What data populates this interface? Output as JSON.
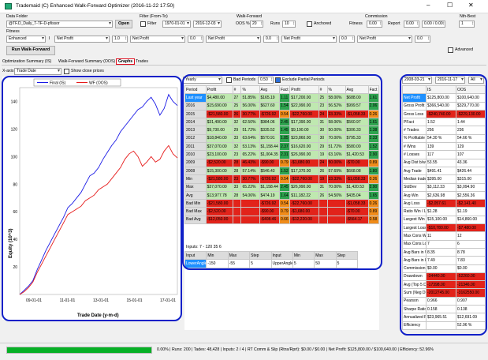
{
  "window": {
    "title": "Trademaid (C) Enhanced Walk-Forward Optimizer (2016-11-22 17:50)",
    "min": "–",
    "max": "☐",
    "close": "✕"
  },
  "data_folder": {
    "label": "Data Folder",
    "value": "@TF.D_Daily_T-TF-D-pfissor",
    "open": "Open"
  },
  "filter": {
    "label": "Filter (From-To)",
    "check": "Filter",
    "from": "1970-01-01",
    "to": "2016-12-03"
  },
  "wf": {
    "label": "Walk-Forward",
    "oos_label": "OOS %",
    "oos": "20",
    "runs_label": "Runs",
    "runs": "10",
    "anchored": "Anchored"
  },
  "commission": {
    "label": "Commission",
    "fitness_label": "Fitness",
    "fitness": "0.00",
    "report_label": "Report",
    "report": "0.00",
    "report2": "0.00 / 0.00"
  },
  "nth": {
    "label": "Nth-Best",
    "value": "1"
  },
  "fitness_row": {
    "label": "Fitness",
    "mode": "Enhanced",
    "sep": "I",
    "metric": "Net Profit",
    "v1": "1.0",
    "m2": "Net Profit",
    "v2": "0.0",
    "m3": "Net Profit",
    "v3": "0.0",
    "m4": "Net Profit",
    "v4": "0.0",
    "m5": "Net Profit",
    "v5": "0.0"
  },
  "run_button": "Run Walk-Forward",
  "advanced": "Advanced",
  "tabs": [
    "Optimization Summary (IS)",
    "Walk-Forward Summary (OOS)",
    "Graphs",
    "Trades"
  ],
  "chart_ctl": {
    "xaxis_label": "X-axis",
    "xaxis": "Trade Date",
    "show_prices": "Show close prices"
  },
  "chart_data": {
    "type": "line",
    "title": "",
    "xlabel": "Trade Date (y-m-d)",
    "ylabel": "Equity (10^3)",
    "ylim": [
      0,
      150
    ],
    "yticks": [
      20,
      40,
      60,
      80,
      100,
      120,
      140
    ],
    "xticks": [
      "09-01-01",
      "11-01-01",
      "13-01-01",
      "15-01-01",
      "17-01-01"
    ],
    "series": [
      {
        "name": "Final (IS)",
        "color": "#1a1ae6",
        "values": [
          0,
          3,
          6,
          10,
          18,
          25,
          32,
          38,
          44,
          50,
          56,
          63,
          66,
          70,
          74,
          80,
          86,
          88,
          92,
          98,
          103,
          108,
          112,
          118,
          122,
          126,
          130,
          134,
          136,
          140,
          143,
          138,
          130,
          135,
          145,
          140,
          137
        ]
      },
      {
        "name": "WF (OOS)",
        "color": "#e61a1a",
        "values": [
          0,
          2,
          5,
          9,
          16,
          22,
          28,
          34,
          40,
          46,
          52,
          58,
          60,
          62,
          64,
          68,
          70,
          72,
          76,
          78,
          80,
          84,
          88,
          92,
          98,
          102,
          104,
          100,
          93,
          96,
          100,
          96,
          98,
          104,
          108,
          102,
          99
        ]
      }
    ]
  },
  "mid": {
    "metric": "Yearly",
    "bad_label": "Bad Periods",
    "bad": "0.50",
    "exclude": "Exclude Partial Periods",
    "headers": [
      "Period",
      "Profit",
      "#",
      "%",
      "Avg",
      "Fact",
      "Profit",
      "#",
      "%",
      "Avg",
      "Fact"
    ],
    "rows": [
      [
        "Last year",
        "$4,480.00",
        "27",
        "51.85%",
        "$165.19",
        "1.11",
        "$17,200.00",
        "25",
        "58.00%",
        "$688.00",
        "1.61"
      ],
      [
        "2016",
        "$15,690.00",
        "25",
        "56.00%",
        "$627.60",
        "1.54",
        "$22,990.00",
        "23",
        "56.52%",
        "$999.57",
        "2.06"
      ],
      [
        "2015",
        "-$21,580.00",
        "26",
        "30.77%",
        "-$726.92",
        "0.54",
        "-$22,760.00",
        "24",
        "33.33%",
        "-$1,058.33",
        "0.26"
      ],
      [
        "2014",
        "$31,490.00",
        "32",
        "62.50%",
        "$984.06",
        "2.45",
        "$17,390.00",
        "31",
        "58.06%",
        "$560.97",
        "1.61"
      ],
      [
        "2013",
        "$9,730.00",
        "29",
        "51.72%",
        "$335.52",
        "1.45",
        "$9,190.00",
        "30",
        "50.00%",
        "$306.33",
        "1.38"
      ],
      [
        "2012",
        "$18,840.00",
        "33",
        "63.64%",
        "$570.91",
        "1.85",
        "$23,860.00",
        "30",
        "70.00%",
        "$795.33",
        "2.33"
      ],
      [
        "2011",
        "$37,070.00",
        "32",
        "53.13%",
        "$1,158.44",
        "2.37",
        "$16,620.00",
        "29",
        "51.72%",
        "$580.00",
        "1.52"
      ],
      [
        "2010",
        "$23,100.00",
        "23",
        "65.22%",
        "$1,004.35",
        "2.31",
        "$26,990.00",
        "19",
        "63.16%",
        "$1,420.53",
        "2.90"
      ],
      [
        "2009",
        "-$2,520.00",
        "28",
        "46.43%",
        "-$90.00",
        "0.79",
        "-$1,680.00",
        "24",
        "50.00%",
        "-$70.00",
        "0.89"
      ],
      [
        "2008",
        "$15,300.00",
        "28",
        "57.14%",
        "$546.43",
        "1.52",
        "$17,370.00",
        "26",
        "57.69%",
        "$668.08",
        "1.80"
      ],
      [
        "Min",
        "-$21,580.00",
        "23",
        "30.77%",
        "-$726.92",
        "0.54",
        "-$22,760.00",
        "19",
        "33.33%",
        "-$1,058.33",
        "0.26"
      ],
      [
        "Max",
        "$37,070.00",
        "33",
        "65.22%",
        "$1,158.44",
        "2.45",
        "$26,990.00",
        "31",
        "70.00%",
        "$1,420.53",
        "2.90"
      ],
      [
        "Avg",
        "$13,977.78",
        "28",
        "54.06%",
        "$474.19",
        "1.64",
        "$11,182.22",
        "26",
        "54.50%",
        "$435.04",
        "1.65"
      ],
      [
        "Bad Min",
        "-$21,580.00",
        "",
        "",
        "-$726.92",
        "0.54",
        "-$22,760.00",
        "",
        "",
        "-$1,058.33",
        "0.26"
      ],
      [
        "Bad Max",
        "-$2,520.00",
        "",
        "",
        "-$90.00",
        "0.79",
        "-$1,680.00",
        "",
        "",
        "-$70.00",
        "0.89"
      ],
      [
        "Bad Avg",
        "-$12,050.00",
        "",
        "",
        "-$408.46",
        "0.66",
        "-$12,220.00",
        "",
        "",
        "-$564.17",
        "0.58"
      ]
    ],
    "inputs_label": "Inputs: 7 - 120 35 6",
    "in_headers": [
      "Input",
      "Min",
      "Max",
      "Step",
      "Input",
      "Min",
      "Max",
      "Step"
    ],
    "in_row": [
      "LowerAngle",
      "-150",
      "-55",
      "5",
      "UpperAngle",
      "5",
      "50",
      "5"
    ]
  },
  "right": {
    "from": "2008-03-21",
    "to": "2016-11-17",
    "all": "All",
    "headers": [
      "",
      "IS",
      "OOS"
    ],
    "rows": [
      [
        "Net Profit",
        "$125,800.00",
        "$100,640.00"
      ],
      [
        "Gross Profit",
        "$366,540.00",
        "$329,770.00"
      ],
      [
        "Gross Loss",
        "-$240,740.00",
        "-$229,130.00"
      ],
      [
        "PFact",
        "1.52",
        "1.44"
      ],
      [
        "# Trades",
        "256",
        "236"
      ],
      [
        "% Profitable",
        "54.30 %",
        "54.66 %"
      ],
      [
        "# Wins",
        "139",
        "129"
      ],
      [
        "# Losses",
        "117",
        "107"
      ],
      [
        "Avg Dist b/w Wns",
        "53.55",
        "43.36"
      ],
      [
        "Avg Trade",
        "$491.41",
        "$426.44"
      ],
      [
        "Median trade",
        "$395.00",
        "$315.00"
      ],
      [
        "StdDev",
        "$3,112.33",
        "$3,094.90"
      ],
      [
        "Avg Win",
        "$2,636.98",
        "$2,556.36"
      ],
      [
        "Avg Loss",
        "-$2,057.61",
        "-$2,141.40"
      ],
      [
        "Ratio Win / Loss",
        "$1.28",
        "$1.19"
      ],
      [
        "Largest Win",
        "$15,100.00",
        "$14,860.00"
      ],
      [
        "Largest Loss",
        "-$10,780.00",
        "-$7,480.00"
      ],
      [
        "Max Cons Wins",
        "11",
        "12"
      ],
      [
        "Max Cons Losses",
        "7",
        "6"
      ],
      [
        "Avg Bars in Win",
        "8.35",
        "8.78"
      ],
      [
        "Avg Bars in Loss",
        "7.49",
        "7.83"
      ],
      [
        "Commission",
        "$0.00",
        "$0.00"
      ],
      [
        "Drawdown",
        "-34440.00",
        "-52260.00"
      ],
      [
        "Avg (Top 5 DDs)",
        "-17398.00",
        "-21346.00"
      ],
      [
        "Sum (Neg DDs)",
        "-2012745.00",
        "-3162550.00"
      ],
      [
        "Pearson",
        "0.966",
        "0.907"
      ],
      [
        "Sharpe Ratio",
        "0.158",
        "0.138"
      ],
      [
        "Annualized P/L",
        "$23,965.51",
        "$12,691.09"
      ],
      [
        "Efficiency",
        "",
        "52.96 %"
      ]
    ]
  },
  "status": {
    "progress": 1.0,
    "text": "0.00% | Runs: 200 | Tades: 48,428 | Inputs: 2 / 4 | RT Comm & Slip (Rtns/Rprt): $0.00 / $0.00 | Net Profit: $125,800.00 / $100,640.00 | Efficiency: 52.96%"
  }
}
